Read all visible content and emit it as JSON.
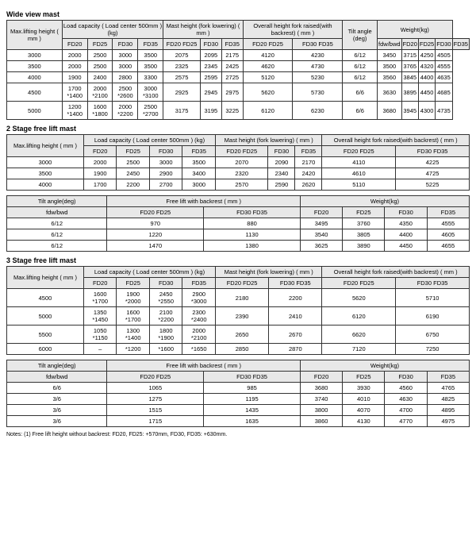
{
  "section1": {
    "title": "Wide view mast",
    "header": {
      "maxlift": "Max.lifting height ( mm )",
      "loadcap": "Load capacity ( Load center 500mm ) (kg)",
      "mastheight": "Mast height (fork lowering) ( mm )",
      "overall": "Overall height fork raised(with backrest) ( mm )",
      "tilt": "Tilt angle (deg)",
      "weight": "Weight(kg)",
      "fd20": "FD20",
      "fd25": "FD25",
      "fd30": "FD30",
      "fd35": "FD35",
      "fd2025": "FD20 FD25",
      "fd3035": "FD30 FD35",
      "fdwbwd": "fdw/bwd"
    },
    "rows": [
      [
        "3000",
        "2000",
        "2500",
        "3000",
        "3500",
        "2075",
        "2095",
        "2175",
        "4120",
        "4230",
        "6/12",
        "3450",
        "3715",
        "4250",
        "4505"
      ],
      [
        "3500",
        "2000",
        "2500",
        "3000",
        "3500",
        "2325",
        "2345",
        "2425",
        "4620",
        "4730",
        "6/12",
        "3500",
        "3765",
        "4320",
        "4555"
      ],
      [
        "4000",
        "1900",
        "2400",
        "2800",
        "3300",
        "2575",
        "2595",
        "2725",
        "5120",
        "5230",
        "6/12",
        "3560",
        "3845",
        "4400",
        "4635"
      ],
      [
        "4500",
        "1700\n*1400",
        "2000\n*2100",
        "2500\n*2600",
        "3000\n*3100",
        "2925",
        "2945",
        "2975",
        "5620",
        "5730",
        "6/6",
        "3630",
        "3895",
        "4450",
        "4685"
      ],
      [
        "5000",
        "1200\n*1400",
        "1600\n*1800",
        "2000\n*2200",
        "2500\n*2700",
        "3175",
        "3195",
        "3225",
        "6120",
        "6230",
        "6/6",
        "3680",
        "3945",
        "4300",
        "4735"
      ]
    ]
  },
  "section2": {
    "title": "2 Stage free lift mast",
    "t1": {
      "hdr": {
        "maxlift": "Max.lifting height ( mm )",
        "loadcap": "Load capacity ( Load center 500mm ) (kg)",
        "mastheight": "Mast height (fork lowering) ( mm )",
        "overall": "Overall height fork raised(with backrest) ( mm )",
        "fd20": "FD20",
        "fd25": "FD25",
        "fd30": "FD30",
        "fd35": "FD35",
        "fd2025": "FD20 FD25",
        "fd3035": "FD30 FD35"
      },
      "rows": [
        [
          "3000",
          "2000",
          "2500",
          "3000",
          "3500",
          "2070",
          "2090",
          "2170",
          "4110",
          "4225"
        ],
        [
          "3500",
          "1900",
          "2450",
          "2900",
          "3400",
          "2320",
          "2340",
          "2420",
          "4610",
          "4725"
        ],
        [
          "4000",
          "1700",
          "2200",
          "2700",
          "3000",
          "2570",
          "2590",
          "2620",
          "5110",
          "5225"
        ]
      ]
    },
    "t2": {
      "hdr": {
        "tilt": "Tilt angle(deg)",
        "freelift": "Free lift with backrest ( mm )",
        "weight": "Weight(kg)",
        "fdwbwd": "fdw/bwd",
        "fd2025": "FD20 FD25",
        "fd3035": "FD30 FD35",
        "fd20": "FD20",
        "fd25": "FD25",
        "fd30": "FD30",
        "fd35": "FD35"
      },
      "rows": [
        [
          "6/12",
          "970",
          "880",
          "3495",
          "3760",
          "4350",
          "4555"
        ],
        [
          "6/12",
          "1220",
          "1130",
          "3540",
          "3805",
          "4400",
          "4605"
        ],
        [
          "6/12",
          "1470",
          "1380",
          "3625",
          "3890",
          "4450",
          "4655"
        ]
      ]
    }
  },
  "section3": {
    "title": "3 Stage free lift mast",
    "t1": {
      "hdr": {
        "maxlift": "Max.lifting height ( mm )",
        "loadcap": "Load capacity ( Load center 500mm ) (kg)",
        "mastheight": "Mast height (fork lowering) ( mm )",
        "overall": "Overall height fork raised(with backrest) ( mm )",
        "fd20": "FD20",
        "fd25": "FD25",
        "fd30": "FD30",
        "fd35": "FD35",
        "fd2025": "FD20 FD25",
        "fd3035": "FD30 FD35"
      },
      "rows": [
        [
          "4500",
          "1600\n*1700",
          "1900\n*2000",
          "2450\n*2550",
          "2900\n*3000",
          "2180",
          "2200",
          "5620",
          "5710"
        ],
        [
          "5000",
          "1350\n*1450",
          "1600\n*1700",
          "2100\n*2200",
          "2300\n*2400",
          "2390",
          "2410",
          "6120",
          "6190"
        ],
        [
          "5500",
          "1050\n*1150",
          "1300\n*1400",
          "1800\n*1900",
          "2000\n*2100",
          "2650",
          "2670",
          "6620",
          "6750"
        ],
        [
          "6000",
          "–",
          "*1200",
          "*1600",
          "*1650",
          "2850",
          "2870",
          "7120",
          "7250"
        ]
      ]
    },
    "t2": {
      "hdr": {
        "tilt": "Tilt angle(deg)",
        "freelift": "Free lift with backrest ( mm )",
        "weight": "Weight(kg)",
        "fdwbwd": "fdw/bwd",
        "fd2025": "FD20 FD25",
        "fd3035": "FD30 FD35",
        "fd20": "FD20",
        "fd25": "FD25",
        "fd30": "FD30",
        "fd35": "FD35"
      },
      "rows": [
        [
          "6/6",
          "1065",
          "985",
          "3680",
          "3930",
          "4560",
          "4765"
        ],
        [
          "3/6",
          "1275",
          "1195",
          "3740",
          "4010",
          "4630",
          "4825"
        ],
        [
          "3/6",
          "1515",
          "1435",
          "3800",
          "4070",
          "4700",
          "4895"
        ],
        [
          "3/6",
          "1715",
          "1635",
          "3860",
          "4130",
          "4770",
          "4975"
        ]
      ]
    }
  },
  "footnote": "Notes: (1) Free lift height without backrest:  FD20, FD25: +570mm,  FD30, FD35: +630mm."
}
